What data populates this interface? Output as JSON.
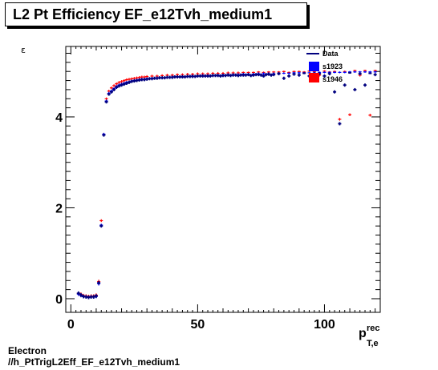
{
  "chart_data": {
    "type": "scatter",
    "title": "L2 Pt Efficiency EF_e12Tvh_medium1",
    "ylabel": "ε",
    "xlabel_main": "p",
    "xlabel_sup": "rec",
    "xlabel_sub": "T,e",
    "xlim": [
      -2,
      122
    ],
    "ylim": [
      -0.3,
      5.55
    ],
    "xticks": [
      0,
      50,
      100
    ],
    "yticks": [
      0,
      2,
      4
    ],
    "grid": false,
    "legend_placement": "top-right",
    "legend": [
      "Data",
      "s1923",
      "s1946"
    ],
    "colors": {
      "data": "#00007f",
      "s1923": "#0000ff",
      "s1946": "#ff0000"
    },
    "series": [
      {
        "name": "Data",
        "x": [
          3,
          4,
          5,
          6,
          7,
          8,
          9,
          10,
          11,
          12,
          13,
          14,
          15,
          16,
          17,
          18,
          19,
          20,
          21,
          22,
          23,
          24,
          25,
          26,
          27,
          28,
          29,
          30,
          31,
          32,
          33,
          34,
          35,
          36,
          37,
          38,
          39,
          40,
          41,
          42,
          43,
          44,
          45,
          46,
          47,
          48,
          49,
          50,
          51,
          52,
          53,
          54,
          55,
          56,
          57,
          58,
          59,
          60,
          61,
          62,
          63,
          64,
          65,
          66,
          67,
          68,
          69,
          70,
          71,
          72,
          73,
          74,
          75,
          76,
          77,
          78,
          79,
          80,
          82,
          84,
          86,
          88,
          90,
          92,
          94,
          96,
          98,
          100,
          102,
          104,
          106,
          108,
          110,
          112,
          114,
          116,
          118,
          120
        ],
        "y": [
          0.12,
          0.08,
          0.05,
          0.04,
          0.03,
          0.04,
          0.04,
          0.06,
          0.35,
          1.6,
          3.6,
          4.33,
          4.5,
          4.55,
          4.6,
          4.65,
          4.68,
          4.7,
          4.72,
          4.74,
          4.76,
          4.78,
          4.79,
          4.8,
          4.81,
          4.82,
          4.82,
          4.83,
          4.84,
          4.84,
          4.85,
          4.85,
          4.86,
          4.86,
          4.86,
          4.87,
          4.87,
          4.87,
          4.88,
          4.88,
          4.88,
          4.88,
          4.88,
          4.89,
          4.89,
          4.89,
          4.89,
          4.9,
          4.9,
          4.9,
          4.9,
          4.9,
          4.9,
          4.91,
          4.91,
          4.91,
          4.9,
          4.91,
          4.91,
          4.92,
          4.91,
          4.92,
          4.92,
          4.91,
          4.92,
          4.92,
          4.92,
          4.93,
          4.91,
          4.92,
          4.93,
          4.93,
          4.92,
          4.9,
          4.93,
          4.94,
          4.92,
          4.93,
          4.95,
          4.85,
          4.9,
          4.94,
          4.92,
          4.96,
          4.9,
          4.95,
          4.95,
          4.9,
          4.95,
          4.55,
          3.85,
          4.7,
          4.97,
          4.6,
          4.95,
          4.7,
          4.96,
          4.93
        ]
      },
      {
        "name": "s1923",
        "x": [
          3,
          4,
          5,
          6,
          7,
          8,
          9,
          10,
          11,
          12,
          13,
          14,
          15,
          16,
          17,
          18,
          19,
          20,
          21,
          22,
          23,
          24,
          25,
          26,
          27,
          28,
          29,
          30,
          32,
          34,
          36,
          38,
          40,
          42,
          44,
          46,
          48,
          50,
          52,
          54,
          56,
          58,
          60,
          62,
          64,
          66,
          68,
          70,
          72,
          74,
          76,
          78,
          80,
          82,
          84,
          86,
          88,
          90,
          92,
          94,
          96,
          98,
          100,
          102,
          104,
          106,
          108,
          110,
          112,
          114,
          116,
          118,
          120
        ],
        "y": [
          0.1,
          0.07,
          0.05,
          0.04,
          0.03,
          0.04,
          0.04,
          0.05,
          0.33,
          1.62,
          3.62,
          4.35,
          4.52,
          4.57,
          4.62,
          4.67,
          4.7,
          4.72,
          4.74,
          4.76,
          4.77,
          4.79,
          4.8,
          4.81,
          4.82,
          4.83,
          4.83,
          4.84,
          4.85,
          4.86,
          4.86,
          4.87,
          4.88,
          4.88,
          4.89,
          4.89,
          4.9,
          4.9,
          4.91,
          4.91,
          4.91,
          4.92,
          4.92,
          4.93,
          4.93,
          4.93,
          4.94,
          4.94,
          4.94,
          4.95,
          4.95,
          4.95,
          4.95,
          4.96,
          4.96,
          4.96,
          4.97,
          4.97,
          4.97,
          4.97,
          4.97,
          4.98,
          4.98,
          4.98,
          4.98,
          4.98,
          4.98,
          4.99,
          4.99,
          4.99,
          4.99,
          4.99,
          4.99
        ]
      },
      {
        "name": "s1946",
        "x": [
          3,
          4,
          5,
          6,
          7,
          8,
          9,
          10,
          11,
          12,
          13,
          14,
          15,
          16,
          17,
          18,
          19,
          20,
          21,
          22,
          23,
          24,
          25,
          26,
          27,
          28,
          29,
          30,
          32,
          34,
          36,
          38,
          40,
          42,
          44,
          46,
          48,
          50,
          52,
          54,
          56,
          58,
          60,
          62,
          64,
          66,
          68,
          70,
          72,
          74,
          76,
          78,
          80,
          82,
          84,
          86,
          88,
          90,
          92,
          94,
          96,
          98,
          100,
          102,
          104,
          106,
          108,
          110,
          112,
          114,
          116,
          118,
          120
        ],
        "y": [
          0.1,
          0.08,
          0.05,
          0.04,
          0.03,
          0.04,
          0.04,
          0.06,
          0.36,
          1.7,
          3.6,
          4.38,
          4.55,
          4.62,
          4.67,
          4.71,
          4.74,
          4.76,
          4.78,
          4.8,
          4.81,
          4.82,
          4.83,
          4.84,
          4.85,
          4.86,
          4.86,
          4.87,
          4.88,
          4.88,
          4.89,
          4.9,
          4.9,
          4.91,
          4.91,
          4.92,
          4.92,
          4.93,
          4.93,
          4.93,
          4.94,
          4.94,
          4.94,
          4.95,
          4.95,
          4.95,
          4.96,
          4.96,
          4.96,
          4.97,
          4.96,
          4.97,
          4.97,
          4.97,
          4.98,
          4.96,
          4.98,
          4.98,
          4.97,
          4.99,
          4.98,
          4.9,
          4.99,
          4.97,
          4.98,
          3.93,
          4.98,
          4.03,
          5.0,
          4.9,
          5.0,
          4.02,
          5.0
        ]
      }
    ]
  },
  "caption": {
    "line1": "Electron",
    "line2": "//h_PtTrigL2Eff_EF_e12Tvh_medium1"
  }
}
